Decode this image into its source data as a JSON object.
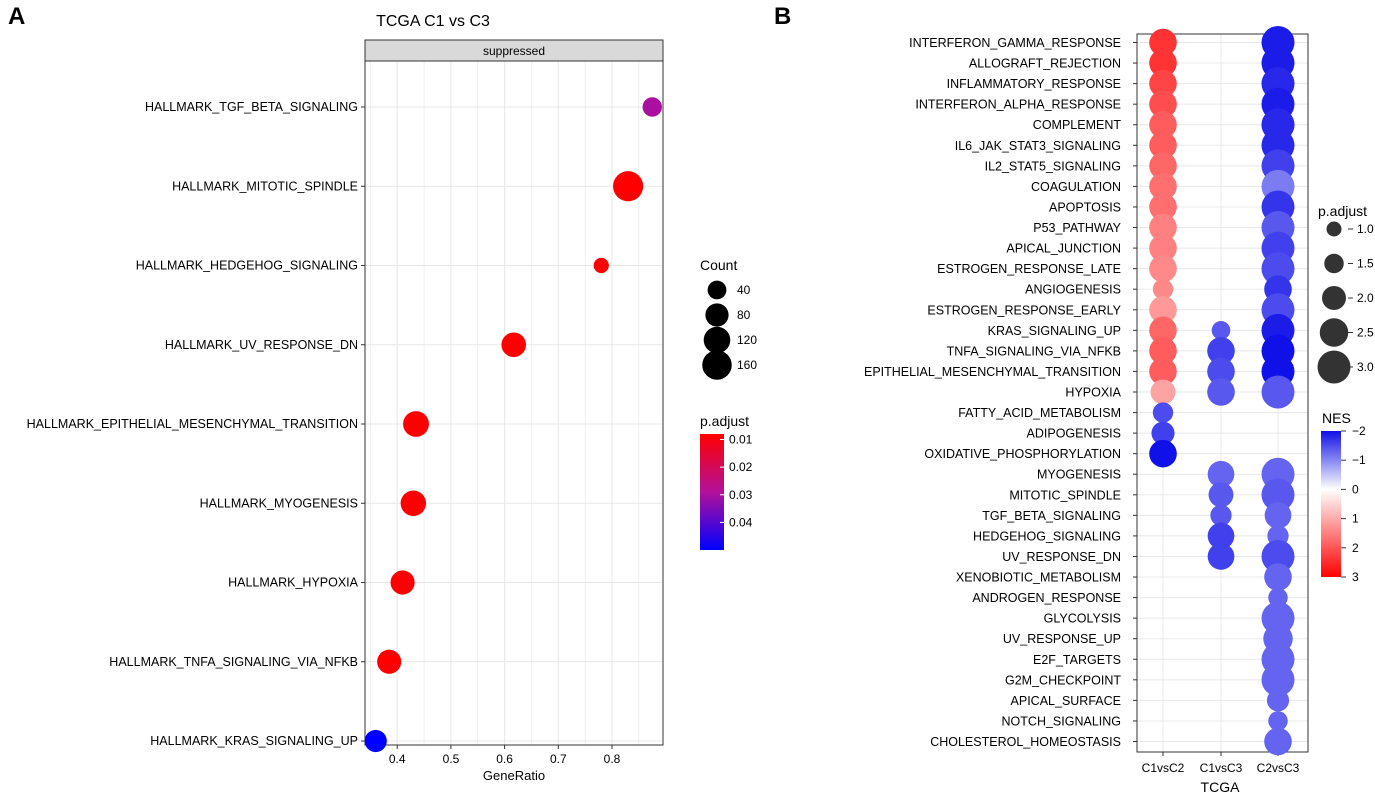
{
  "panel_labels": {
    "a": "A",
    "b": "B"
  },
  "colors": {
    "grid": "#e8e8e8",
    "strip_fill": "#d9d9d9",
    "panel_a_low": "#ff0000",
    "panel_a_mid": "#b3109a",
    "panel_a_high": "#0000ff",
    "nes_neg": "#1010e8",
    "nes_zero": "#ffffff",
    "nes_pos": "#ff0000",
    "size_legend_dot": "#000000",
    "padj_legend_dot": "#333333"
  },
  "chart_data": [
    {
      "id": "panel_a",
      "type": "scatter",
      "title": "TCGA C1 vs C3",
      "facet_label": "suppressed",
      "xlabel": "GeneRatio",
      "ylabel": "",
      "xlim": [
        0.34,
        0.895
      ],
      "xticks": [
        0.4,
        0.5,
        0.6,
        0.7,
        0.8
      ],
      "xtick_labels": [
        "0.4",
        "0.5",
        "0.6",
        "0.7",
        "0.8"
      ],
      "grid": true,
      "categories": [
        "HALLMARK_TGF_BETA_SIGNALING",
        "HALLMARK_MITOTIC_SPINDLE",
        "HALLMARK_HEDGEHOG_SIGNALING",
        "HALLMARK_UV_RESPONSE_DN",
        "HALLMARK_EPITHELIAL_MESENCHYMAL_TRANSITION",
        "HALLMARK_MYOGENESIS",
        "HALLMARK_HYPOXIA",
        "HALLMARK_TNFA_SIGNALING_VIA_NFKB",
        "HALLMARK_KRAS_SIGNALING_UP"
      ],
      "gene_ratio": [
        0.875,
        0.83,
        0.78,
        0.617,
        0.435,
        0.43,
        0.41,
        0.385,
        0.36
      ],
      "count": [
        45,
        170,
        18,
        95,
        110,
        105,
        90,
        90,
        70
      ],
      "p_adjust": [
        0.03,
        0.008,
        0.008,
        0.008,
        0.008,
        0.008,
        0.008,
        0.008,
        0.05
      ],
      "size_legend": {
        "title": "Count",
        "values": [
          40,
          80,
          120,
          160
        ],
        "labels": [
          "40",
          "80",
          "120",
          "160"
        ]
      },
      "color_legend": {
        "title": "p.adjust",
        "range": [
          0.008,
          0.05
        ],
        "ticks": [
          0.01,
          0.02,
          0.03,
          0.04
        ],
        "labels": [
          "0.01",
          "0.02",
          "0.03",
          "0.04"
        ]
      },
      "legend_position": "right"
    },
    {
      "id": "panel_b",
      "type": "scatter",
      "title": "",
      "xlabel": "TCGA",
      "ylabel": "",
      "columns": [
        "C1vsC2",
        "C1vsC3",
        "C2vsC3"
      ],
      "grid": true,
      "rows": [
        "INTERFERON_GAMMA_RESPONSE",
        "ALLOGRAFT_REJECTION",
        "INFLAMMATORY_RESPONSE",
        "INTERFERON_ALPHA_RESPONSE",
        "COMPLEMENT",
        "IL6_JAK_STAT3_SIGNALING",
        "IL2_STAT5_SIGNALING",
        "COAGULATION",
        "APOPTOSIS",
        "P53_PATHWAY",
        "APICAL_JUNCTION",
        "ESTROGEN_RESPONSE_LATE",
        "ANGIOGENESIS",
        "ESTROGEN_RESPONSE_EARLY",
        "KRAS_SIGNALING_UP",
        "TNFA_SIGNALING_VIA_NFKB",
        "EPITHELIAL_MESENCHYMAL_TRANSITION",
        "HYPOXIA",
        "FATTY_ACID_METABOLISM",
        "ADIPOGENESIS",
        "OXIDATIVE_PHOSPHORYLATION",
        "MYOGENESIS",
        "MITOTIC_SPINDLE",
        "TGF_BETA_SIGNALING",
        "HEDGEHOG_SIGNALING",
        "UV_RESPONSE_DN",
        "XENOBIOTIC_METABOLISM",
        "ANDROGEN_RESPONSE",
        "GLYCOLYSIS",
        "UV_RESPONSE_UP",
        "E2F_TARGETS",
        "G2M_CHECKPOINT",
        "APICAL_SURFACE",
        "NOTCH_SIGNALING",
        "CHOLESTEROL_HOMEOSTASIS"
      ],
      "points": [
        {
          "row": "INTERFERON_GAMMA_RESPONSE",
          "col": "C1vsC2",
          "nes": 2.4,
          "padj": 2.4
        },
        {
          "row": "INTERFERON_GAMMA_RESPONSE",
          "col": "C2vsC3",
          "nes": -1.9,
          "padj": 3.0
        },
        {
          "row": "ALLOGRAFT_REJECTION",
          "col": "C1vsC2",
          "nes": 2.4,
          "padj": 2.4
        },
        {
          "row": "ALLOGRAFT_REJECTION",
          "col": "C2vsC3",
          "nes": -1.9,
          "padj": 3.0
        },
        {
          "row": "INFLAMMATORY_RESPONSE",
          "col": "C1vsC2",
          "nes": 2.2,
          "padj": 2.4
        },
        {
          "row": "INFLAMMATORY_RESPONSE",
          "col": "C2vsC3",
          "nes": -1.8,
          "padj": 3.0
        },
        {
          "row": "INTERFERON_ALPHA_RESPONSE",
          "col": "C1vsC2",
          "nes": 2.1,
          "padj": 2.4
        },
        {
          "row": "INTERFERON_ALPHA_RESPONSE",
          "col": "C2vsC3",
          "nes": -1.9,
          "padj": 3.0
        },
        {
          "row": "COMPLEMENT",
          "col": "C1vsC2",
          "nes": 1.9,
          "padj": 2.4
        },
        {
          "row": "COMPLEMENT",
          "col": "C2vsC3",
          "nes": -1.8,
          "padj": 3.0
        },
        {
          "row": "IL6_JAK_STAT3_SIGNALING",
          "col": "C1vsC2",
          "nes": 1.9,
          "padj": 2.4
        },
        {
          "row": "IL6_JAK_STAT3_SIGNALING",
          "col": "C2vsC3",
          "nes": -1.8,
          "padj": 3.0
        },
        {
          "row": "IL2_STAT5_SIGNALING",
          "col": "C1vsC2",
          "nes": 1.8,
          "padj": 2.4
        },
        {
          "row": "IL2_STAT5_SIGNALING",
          "col": "C2vsC3",
          "nes": -1.6,
          "padj": 3.0
        },
        {
          "row": "COAGULATION",
          "col": "C1vsC2",
          "nes": 1.7,
          "padj": 2.4
        },
        {
          "row": "COAGULATION",
          "col": "C2vsC3",
          "nes": -1.1,
          "padj": 3.0
        },
        {
          "row": "APOPTOSIS",
          "col": "C1vsC2",
          "nes": 1.7,
          "padj": 2.4
        },
        {
          "row": "APOPTOSIS",
          "col": "C2vsC3",
          "nes": -1.7,
          "padj": 3.0
        },
        {
          "row": "P53_PATHWAY",
          "col": "C1vsC2",
          "nes": 1.5,
          "padj": 2.4
        },
        {
          "row": "P53_PATHWAY",
          "col": "C2vsC3",
          "nes": -1.4,
          "padj": 3.0
        },
        {
          "row": "APICAL_JUNCTION",
          "col": "C1vsC2",
          "nes": 1.5,
          "padj": 2.4
        },
        {
          "row": "APICAL_JUNCTION",
          "col": "C2vsC3",
          "nes": -1.6,
          "padj": 3.0
        },
        {
          "row": "ESTROGEN_RESPONSE_LATE",
          "col": "C1vsC2",
          "nes": 1.4,
          "padj": 2.4
        },
        {
          "row": "ESTROGEN_RESPONSE_LATE",
          "col": "C2vsC3",
          "nes": -1.5,
          "padj": 3.0
        },
        {
          "row": "ANGIOGENESIS",
          "col": "C1vsC2",
          "nes": 1.4,
          "padj": 1.6
        },
        {
          "row": "ANGIOGENESIS",
          "col": "C2vsC3",
          "nes": -1.7,
          "padj": 2.4
        },
        {
          "row": "ESTROGEN_RESPONSE_EARLY",
          "col": "C1vsC2",
          "nes": 1.2,
          "padj": 2.4
        },
        {
          "row": "ESTROGEN_RESPONSE_EARLY",
          "col": "C2vsC3",
          "nes": -1.5,
          "padj": 3.0
        },
        {
          "row": "KRAS_SIGNALING_UP",
          "col": "C1vsC2",
          "nes": 1.8,
          "padj": 2.4
        },
        {
          "row": "KRAS_SIGNALING_UP",
          "col": "C1vsC3",
          "nes": -1.4,
          "padj": 1.4
        },
        {
          "row": "KRAS_SIGNALING_UP",
          "col": "C2vsC3",
          "nes": -1.9,
          "padj": 3.0
        },
        {
          "row": "TNFA_SIGNALING_VIA_NFKB",
          "col": "C1vsC2",
          "nes": 1.9,
          "padj": 2.4
        },
        {
          "row": "TNFA_SIGNALING_VIA_NFKB",
          "col": "C1vsC3",
          "nes": -1.6,
          "padj": 2.4
        },
        {
          "row": "TNFA_SIGNALING_VIA_NFKB",
          "col": "C2vsC3",
          "nes": -2.0,
          "padj": 3.0
        },
        {
          "row": "EPITHELIAL_MESENCHYMAL_TRANSITION",
          "col": "C1vsC2",
          "nes": 1.9,
          "padj": 2.4
        },
        {
          "row": "EPITHELIAL_MESENCHYMAL_TRANSITION",
          "col": "C1vsC3",
          "nes": -1.5,
          "padj": 2.4
        },
        {
          "row": "EPITHELIAL_MESENCHYMAL_TRANSITION",
          "col": "C2vsC3",
          "nes": -2.0,
          "padj": 3.0
        },
        {
          "row": "HYPOXIA",
          "col": "C1vsC2",
          "nes": 1.1,
          "padj": 2.1
        },
        {
          "row": "HYPOXIA",
          "col": "C1vsC3",
          "nes": -1.4,
          "padj": 2.4
        },
        {
          "row": "HYPOXIA",
          "col": "C2vsC3",
          "nes": -1.4,
          "padj": 3.0
        },
        {
          "row": "FATTY_ACID_METABOLISM",
          "col": "C1vsC2",
          "nes": -1.5,
          "padj": 1.6
        },
        {
          "row": "ADIPOGENESIS",
          "col": "C1vsC2",
          "nes": -1.6,
          "padj": 1.9
        },
        {
          "row": "OXIDATIVE_PHOSPHORYLATION",
          "col": "C1vsC2",
          "nes": -2.1,
          "padj": 2.4
        },
        {
          "row": "MYOGENESIS",
          "col": "C1vsC3",
          "nes": -1.3,
          "padj": 2.3
        },
        {
          "row": "MYOGENESIS",
          "col": "C2vsC3",
          "nes": -1.3,
          "padj": 3.0
        },
        {
          "row": "MITOTIC_SPINDLE",
          "col": "C1vsC3",
          "nes": -1.4,
          "padj": 2.1
        },
        {
          "row": "MITOTIC_SPINDLE",
          "col": "C2vsC3",
          "nes": -1.4,
          "padj": 3.0
        },
        {
          "row": "TGF_BETA_SIGNALING",
          "col": "C1vsC3",
          "nes": -1.4,
          "padj": 1.7
        },
        {
          "row": "TGF_BETA_SIGNALING",
          "col": "C2vsC3",
          "nes": -1.3,
          "padj": 2.3
        },
        {
          "row": "HEDGEHOG_SIGNALING",
          "col": "C1vsC3",
          "nes": -1.6,
          "padj": 2.3
        },
        {
          "row": "HEDGEHOG_SIGNALING",
          "col": "C2vsC3",
          "nes": -1.3,
          "padj": 1.7
        },
        {
          "row": "UV_RESPONSE_DN",
          "col": "C1vsC3",
          "nes": -1.6,
          "padj": 2.3
        },
        {
          "row": "UV_RESPONSE_DN",
          "col": "C2vsC3",
          "nes": -1.5,
          "padj": 3.0
        },
        {
          "row": "XENOBIOTIC_METABOLISM",
          "col": "C2vsC3",
          "nes": -1.3,
          "padj": 2.4
        },
        {
          "row": "ANDROGEN_RESPONSE",
          "col": "C2vsC3",
          "nes": -1.3,
          "padj": 1.5
        },
        {
          "row": "GLYCOLYSIS",
          "col": "C2vsC3",
          "nes": -1.3,
          "padj": 3.0
        },
        {
          "row": "UV_RESPONSE_UP",
          "col": "C2vsC3",
          "nes": -1.3,
          "padj": 2.6
        },
        {
          "row": "E2F_TARGETS",
          "col": "C2vsC3",
          "nes": -1.3,
          "padj": 3.0
        },
        {
          "row": "G2M_CHECKPOINT",
          "col": "C2vsC3",
          "nes": -1.3,
          "padj": 3.0
        },
        {
          "row": "APICAL_SURFACE",
          "col": "C2vsC3",
          "nes": -1.3,
          "padj": 1.8
        },
        {
          "row": "NOTCH_SIGNALING",
          "col": "C2vsC3",
          "nes": -1.3,
          "padj": 1.5
        },
        {
          "row": "CHOLESTEROL_HOMEOSTASIS",
          "col": "C2vsC3",
          "nes": -1.3,
          "padj": 2.4
        }
      ],
      "size_legend": {
        "title": "p.adjust",
        "values": [
          1.0,
          1.5,
          2.0,
          2.5,
          3.0
        ],
        "labels": [
          "1.0",
          "1.5",
          "2.0",
          "2.5",
          "3.0"
        ]
      },
      "color_legend": {
        "title": "NES",
        "range": [
          -2,
          3
        ],
        "ticks": [
          -2,
          -1,
          0,
          1,
          2,
          3
        ],
        "labels": [
          "−2",
          "−1",
          "0",
          "1",
          "2",
          "3"
        ]
      },
      "legend_position": "right"
    }
  ]
}
